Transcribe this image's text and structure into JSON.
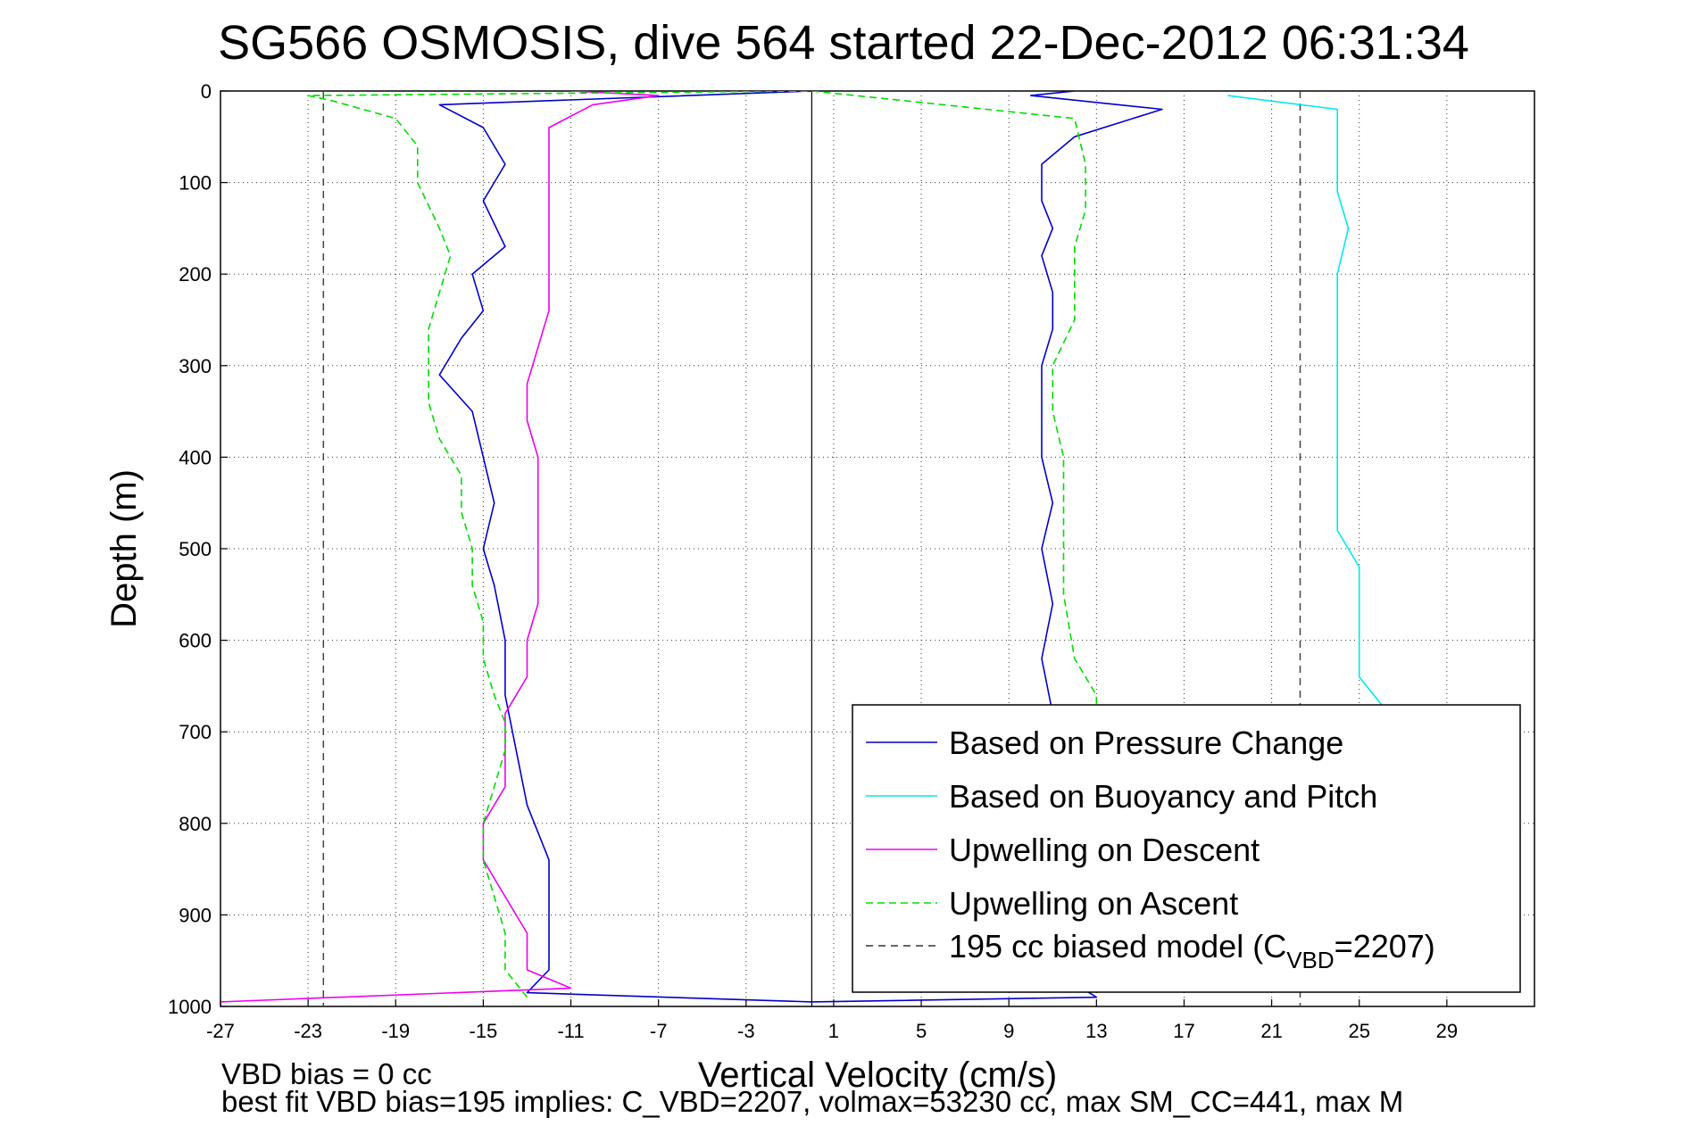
{
  "chart_data": {
    "type": "line",
    "title": "SG566 OSMOSIS, dive 564 started 22-Dec-2012 06:31:34",
    "xlabel": "Vertical Velocity (cm/s)",
    "ylabel": "Depth (m)",
    "xlim": [
      -27,
      33
    ],
    "ylim": [
      1000,
      0
    ],
    "xticks": [
      -27,
      -23,
      -19,
      -15,
      -11,
      -7,
      -3,
      1,
      5,
      9,
      13,
      17,
      21,
      25,
      29
    ],
    "yticks": [
      0,
      100,
      200,
      300,
      400,
      500,
      600,
      700,
      800,
      900,
      1000
    ],
    "grid": true,
    "legend_position": "bottom-right",
    "reference_lines": {
      "zero_x": 0,
      "model_x": [
        -22.3,
        22.3
      ]
    },
    "footer": {
      "line1": "VBD bias = 0 cc",
      "line2": "best fit VBD bias=195 implies: C_VBD=2207, volmax=53230 cc, max SM_CC=441, max M"
    },
    "legend": [
      {
        "label": "Based on Pressure Change",
        "sub": "",
        "suffix": ""
      },
      {
        "label": "Based on Buoyancy and Pitch",
        "sub": "",
        "suffix": ""
      },
      {
        "label": "Upwelling on Descent",
        "sub": "",
        "suffix": ""
      },
      {
        "label": "Upwelling on Ascent",
        "sub": "",
        "suffix": ""
      },
      {
        "label": "195 cc biased model (C",
        "sub": "VBD",
        "suffix": "=2207)"
      }
    ],
    "series": [
      {
        "name": "Based on Pressure Change",
        "color": "#0000cc",
        "dash": "none",
        "points": [
          [
            0,
            0
          ],
          [
            -17,
            15
          ],
          [
            -15,
            40
          ],
          [
            -14,
            80
          ],
          [
            -15,
            120
          ],
          [
            -14,
            170
          ],
          [
            -15.5,
            200
          ],
          [
            -15,
            240
          ],
          [
            -16,
            270
          ],
          [
            -17,
            310
          ],
          [
            -15.5,
            350
          ],
          [
            -15,
            400
          ],
          [
            -14.5,
            450
          ],
          [
            -15,
            500
          ],
          [
            -14.5,
            540
          ],
          [
            -14,
            600
          ],
          [
            -14,
            660
          ],
          [
            -13.5,
            720
          ],
          [
            -13,
            780
          ],
          [
            -12,
            840
          ],
          [
            -12,
            900
          ],
          [
            -12,
            960
          ],
          [
            -13,
            985
          ],
          [
            0,
            995
          ],
          [
            13,
            990
          ],
          [
            11,
            960
          ],
          [
            11,
            920
          ],
          [
            11.5,
            860
          ],
          [
            11,
            800
          ],
          [
            10.5,
            740
          ],
          [
            11,
            680
          ],
          [
            10.5,
            620
          ],
          [
            11,
            560
          ],
          [
            10.5,
            500
          ],
          [
            11,
            450
          ],
          [
            10.5,
            400
          ],
          [
            10.5,
            350
          ],
          [
            10.5,
            300
          ],
          [
            11,
            260
          ],
          [
            11,
            220
          ],
          [
            10.5,
            180
          ],
          [
            11,
            150
          ],
          [
            10.5,
            120
          ],
          [
            10.5,
            80
          ],
          [
            12,
            50
          ],
          [
            16,
            20
          ],
          [
            10,
            5
          ],
          [
            12,
            0
          ]
        ]
      },
      {
        "name": "Based on Buoyancy and Pitch",
        "color": "#00e8ee",
        "dash": "none",
        "points": [
          [
            19,
            5
          ],
          [
            24,
            20
          ],
          [
            24,
            50
          ],
          [
            24,
            80
          ],
          [
            24,
            110
          ],
          [
            24.5,
            150
          ],
          [
            24,
            200
          ],
          [
            24,
            240
          ],
          [
            24,
            280
          ],
          [
            24,
            320
          ],
          [
            24,
            360
          ],
          [
            24,
            400
          ],
          [
            24,
            440
          ],
          [
            24,
            480
          ],
          [
            25,
            520
          ],
          [
            25,
            560
          ],
          [
            25,
            600
          ],
          [
            25,
            640
          ],
          [
            26,
            670
          ],
          [
            26,
            700
          ]
        ]
      },
      {
        "name": "Upwelling on Descent",
        "color": "#ee00ee",
        "dash": "none",
        "points": [
          [
            -27,
            995
          ],
          [
            -11,
            980
          ],
          [
            -13,
            960
          ],
          [
            -13,
            920
          ],
          [
            -14,
            880
          ],
          [
            -15,
            840
          ],
          [
            -15,
            800
          ],
          [
            -14,
            760
          ],
          [
            -14,
            720
          ],
          [
            -14,
            680
          ],
          [
            -13,
            640
          ],
          [
            -13,
            600
          ],
          [
            -12.5,
            560
          ],
          [
            -12.5,
            520
          ],
          [
            -12.5,
            480
          ],
          [
            -12.5,
            440
          ],
          [
            -12.5,
            400
          ],
          [
            -13,
            360
          ],
          [
            -13,
            320
          ],
          [
            -12.5,
            280
          ],
          [
            -12,
            240
          ],
          [
            -12,
            200
          ],
          [
            -12,
            160
          ],
          [
            -12,
            120
          ],
          [
            -12,
            80
          ],
          [
            -12,
            40
          ],
          [
            -10,
            15
          ],
          [
            -7,
            5
          ],
          [
            -11,
            0
          ]
        ]
      },
      {
        "name": "Upwelling on Ascent",
        "color": "#00dd00",
        "dash": "8,5",
        "points": [
          [
            -13,
            990
          ],
          [
            -14,
            960
          ],
          [
            -14,
            920
          ],
          [
            -14.5,
            880
          ],
          [
            -15,
            840
          ],
          [
            -15,
            800
          ],
          [
            -14.5,
            760
          ],
          [
            -14,
            720
          ],
          [
            -14,
            690
          ],
          [
            -14.5,
            660
          ],
          [
            -15,
            620
          ],
          [
            -15,
            580
          ],
          [
            -15.5,
            540
          ],
          [
            -15.5,
            500
          ],
          [
            -16,
            460
          ],
          [
            -16,
            420
          ],
          [
            -17,
            380
          ],
          [
            -17.5,
            340
          ],
          [
            -17.5,
            300
          ],
          [
            -17.5,
            260
          ],
          [
            -17,
            220
          ],
          [
            -16.5,
            180
          ],
          [
            -17,
            150
          ],
          [
            -18,
            100
          ],
          [
            -18,
            60
          ],
          [
            -19,
            30
          ],
          [
            -22,
            10
          ],
          [
            -23,
            5
          ],
          [
            0,
            0
          ],
          [
            12,
            30
          ],
          [
            12.5,
            80
          ],
          [
            12.5,
            130
          ],
          [
            12,
            170
          ],
          [
            12,
            200
          ],
          [
            12,
            250
          ],
          [
            11,
            300
          ],
          [
            11,
            350
          ],
          [
            11.5,
            400
          ],
          [
            11.5,
            450
          ],
          [
            11.5,
            500
          ],
          [
            11.5,
            550
          ],
          [
            12,
            620
          ],
          [
            13,
            660
          ],
          [
            13,
            680
          ]
        ]
      }
    ]
  }
}
